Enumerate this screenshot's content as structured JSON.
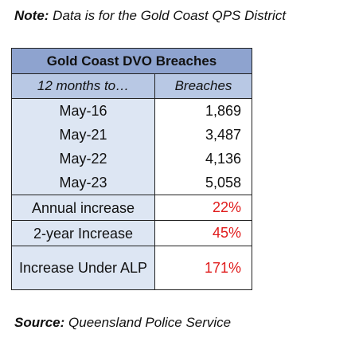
{
  "note": {
    "label": "Note:",
    "text": " Data is for the Gold Coast QPS District"
  },
  "table": {
    "title": "Gold Coast DVO Breaches",
    "headers": [
      "12 months to…",
      "Breaches"
    ],
    "rows": [
      {
        "period": "May-16",
        "value": "1,869"
      },
      {
        "period": "May-21",
        "value": "3,487"
      },
      {
        "period": "May-22",
        "value": "4,136"
      },
      {
        "period": "May-23",
        "value": "5,058"
      }
    ],
    "summary": [
      {
        "label": "Annual increase",
        "value": "22%"
      },
      {
        "label": "2-year Increase",
        "value": "45%"
      },
      {
        "label": "Increase Under ALP",
        "value": "171%"
      }
    ],
    "accent_color": "#e01b1b",
    "title_color": "#8ea3cf",
    "header_color": "#b8c8e4",
    "label_cell_color": "#dde6f3"
  },
  "source": {
    "label": "Source:",
    "text": " Queensland Police Service"
  }
}
